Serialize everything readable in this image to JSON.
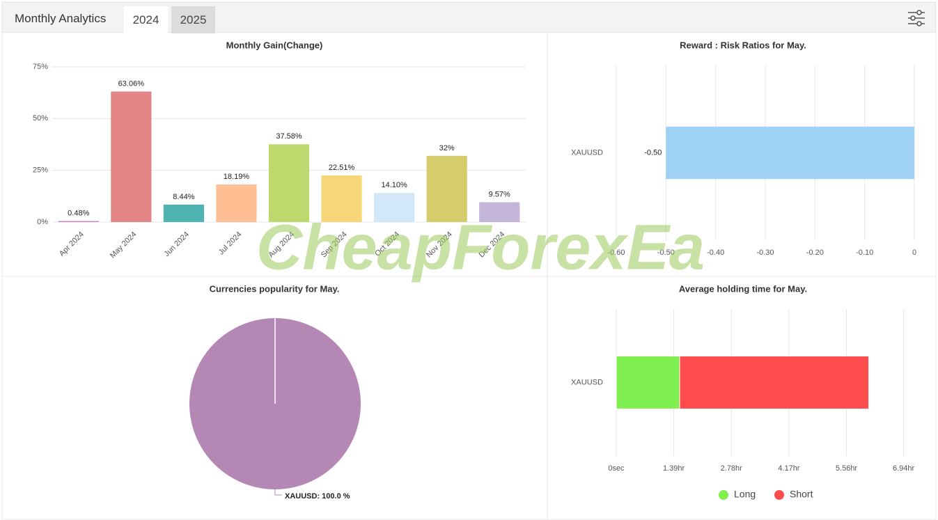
{
  "header": {
    "title": "Monthly Analytics",
    "tabs": [
      "2024",
      "2025"
    ]
  },
  "watermark": "CheapForexEa",
  "chart_data": [
    {
      "type": "bar",
      "title": "Monthly Gain(Change)",
      "categories": [
        "Apr 2024",
        "May 2024",
        "Jun 2024",
        "Jul 2024",
        "Aug 2024",
        "Sep 2024",
        "Oct 2024",
        "Nov 2024",
        "Dec 2024"
      ],
      "values": [
        0.48,
        63.06,
        8.44,
        18.19,
        37.58,
        22.51,
        14.1,
        32,
        9.57
      ],
      "value_labels": [
        "0.48%",
        "63.06%",
        "8.44%",
        "18.19%",
        "37.58%",
        "22.51%",
        "14.10%",
        "32%",
        "9.57%"
      ],
      "colors": [
        "#c58ac5",
        "#e38585",
        "#4fb3b3",
        "#ffbf92",
        "#bdd86c",
        "#f6d676",
        "#d2e8f9",
        "#d5cc6b",
        "#c6b5da"
      ],
      "ylim": [
        0,
        75
      ],
      "yticks": [
        {
          "value": 0,
          "label": "0%"
        },
        {
          "value": 25,
          "label": "25%"
        },
        {
          "value": 50,
          "label": "50%"
        },
        {
          "value": 75,
          "label": "75%"
        }
      ],
      "grid": true
    },
    {
      "type": "hbar",
      "title": "Reward : Risk Ratios for May.",
      "categories": [
        "XAUUSD"
      ],
      "values": [
        -0.5
      ],
      "value_labels": [
        "-0.50"
      ],
      "color": "#9fd0f6",
      "xlim": [
        -0.6,
        0
      ],
      "xticks": [
        {
          "value": -0.6,
          "label": "-0.60"
        },
        {
          "value": -0.5,
          "label": "-0.50"
        },
        {
          "value": -0.4,
          "label": "-0.40"
        },
        {
          "value": -0.3,
          "label": "-0.30"
        },
        {
          "value": -0.2,
          "label": "-0.20"
        },
        {
          "value": -0.1,
          "label": "-0.10"
        },
        0
      ],
      "grid": true
    },
    {
      "type": "pie",
      "title": "Currencies popularity for May.",
      "categories": [
        "XAUUSD"
      ],
      "values": [
        100
      ],
      "value_labels": [
        "XAUUSD: 100.0 %"
      ],
      "colors": [
        "#b587b5"
      ]
    },
    {
      "type": "stacked_hbar",
      "title": "Average holding time for May.",
      "categories": [
        "XAUUSD"
      ],
      "series": [
        {
          "name": "Long",
          "color": "#80f050",
          "values": [
            1.53
          ]
        },
        {
          "name": "Short",
          "color": "#ff4d4d",
          "values": [
            4.57
          ]
        }
      ],
      "xlim": [
        0,
        7.2
      ],
      "xticks": [
        {
          "value": 0,
          "label": "0sec"
        },
        {
          "value": 1.39,
          "label": "1.39hr"
        },
        {
          "value": 2.78,
          "label": "2.78hr"
        },
        {
          "value": 4.17,
          "label": "4.17hr"
        },
        {
          "value": 5.56,
          "label": "5.56hr"
        },
        {
          "value": 6.94,
          "label": "6.94hr"
        }
      ],
      "grid": true,
      "legend": "bottom"
    }
  ]
}
